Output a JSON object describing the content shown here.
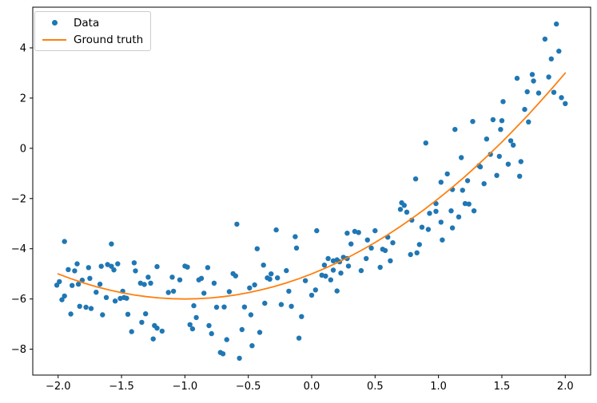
{
  "figure": {
    "background": "#ffffff",
    "spine_color": "#000000"
  },
  "legend": {
    "items": [
      {
        "label": "Data",
        "marker": "dot",
        "color": "#1f77b4"
      },
      {
        "label": "Ground truth",
        "marker": "line",
        "color": "#ff7f0e"
      }
    ]
  },
  "chart_data": {
    "type": "scatter",
    "title": "",
    "xlabel": "",
    "ylabel": "",
    "grid": false,
    "legend_position": "upper left",
    "xlim": [
      -2.2,
      2.2
    ],
    "ylim": [
      -9.03,
      5.62
    ],
    "x_ticks": {
      "values": [
        -2.0,
        -1.5,
        -1.0,
        -0.5,
        0.0,
        0.5,
        1.0,
        1.5,
        2.0
      ],
      "labels": [
        "−2.0",
        "−1.5",
        "−1.0",
        "−0.5",
        "0.0",
        "0.5",
        "1.0",
        "1.5",
        "2.0"
      ]
    },
    "y_ticks": {
      "values": [
        4,
        2,
        0,
        -2,
        -4,
        -6,
        -8
      ],
      "labels": [
        "4",
        "2",
        "0",
        "−2",
        "−4",
        "−6",
        "−8"
      ]
    },
    "series": [
      {
        "name": "Data",
        "type": "scatter",
        "color": "#1f77b4",
        "points": [
          [
            -2.01,
            -5.45
          ],
          [
            -1.99,
            -5.31
          ],
          [
            -1.97,
            -6.03
          ],
          [
            -1.95,
            -5.88
          ],
          [
            -1.95,
            -3.71
          ],
          [
            -1.92,
            -4.83
          ],
          [
            -1.9,
            -6.6
          ],
          [
            -1.89,
            -5.46
          ],
          [
            -1.87,
            -4.88
          ],
          [
            -1.85,
            -4.6
          ],
          [
            -1.84,
            -5.41
          ],
          [
            -1.83,
            -6.29
          ],
          [
            -1.81,
            -5.25
          ],
          [
            -1.78,
            -6.33
          ],
          [
            -1.76,
            -4.75
          ],
          [
            -1.75,
            -5.18
          ],
          [
            -1.74,
            -6.38
          ],
          [
            -1.7,
            -5.73
          ],
          [
            -1.67,
            -5.41
          ],
          [
            -1.66,
            -4.7
          ],
          [
            -1.65,
            -6.63
          ],
          [
            -1.62,
            -5.94
          ],
          [
            -1.61,
            -4.63
          ],
          [
            -1.58,
            -4.7
          ],
          [
            -1.58,
            -3.81
          ],
          [
            -1.56,
            -4.84
          ],
          [
            -1.55,
            -6.08
          ],
          [
            -1.53,
            -4.6
          ],
          [
            -1.51,
            -5.98
          ],
          [
            -1.49,
            -5.69
          ],
          [
            -1.48,
            -5.94
          ],
          [
            -1.46,
            -5.97
          ],
          [
            -1.45,
            -6.61
          ],
          [
            -1.42,
            -7.3
          ],
          [
            -1.4,
            -4.56
          ],
          [
            -1.39,
            -4.88
          ],
          [
            -1.35,
            -5.37
          ],
          [
            -1.34,
            -6.93
          ],
          [
            -1.32,
            -5.42
          ],
          [
            -1.31,
            -6.59
          ],
          [
            -1.29,
            -5.13
          ],
          [
            -1.27,
            -5.37
          ],
          [
            -1.25,
            -7.59
          ],
          [
            -1.24,
            -7.06
          ],
          [
            -1.22,
            -7.16
          ],
          [
            -1.22,
            -4.71
          ],
          [
            -1.18,
            -7.28
          ],
          [
            -1.13,
            -5.74
          ],
          [
            -1.1,
            -5.13
          ],
          [
            -1.09,
            -5.69
          ],
          [
            -1.04,
            -5.24
          ],
          [
            -1.0,
            -4.69
          ],
          [
            -0.98,
            -4.73
          ],
          [
            -0.96,
            -7.02
          ],
          [
            -0.94,
            -7.19
          ],
          [
            -0.93,
            -6.27
          ],
          [
            -0.91,
            -6.74
          ],
          [
            -0.89,
            -5.24
          ],
          [
            -0.87,
            -5.18
          ],
          [
            -0.85,
            -5.77
          ],
          [
            -0.82,
            -4.75
          ],
          [
            -0.81,
            -7.06
          ],
          [
            -0.79,
            -7.38
          ],
          [
            -0.77,
            -5.37
          ],
          [
            -0.75,
            -6.33
          ],
          [
            -0.72,
            -8.13
          ],
          [
            -0.7,
            -8.18
          ],
          [
            -0.69,
            -6.32
          ],
          [
            -0.67,
            -7.62
          ],
          [
            -0.65,
            -5.71
          ],
          [
            -0.62,
            -4.99
          ],
          [
            -0.6,
            -5.08
          ],
          [
            -0.59,
            -3.02
          ],
          [
            -0.57,
            -8.36
          ],
          [
            -0.55,
            -7.22
          ],
          [
            -0.53,
            -6.32
          ],
          [
            -0.49,
            -5.56
          ],
          [
            -0.48,
            -6.63
          ],
          [
            -0.47,
            -7.86
          ],
          [
            -0.45,
            -5.44
          ],
          [
            -0.43,
            -4.0
          ],
          [
            -0.41,
            -7.33
          ],
          [
            -0.38,
            -4.65
          ],
          [
            -0.37,
            -6.17
          ],
          [
            -0.35,
            -5.16
          ],
          [
            -0.33,
            -5.21
          ],
          [
            -0.32,
            -5.0
          ],
          [
            -0.28,
            -3.25
          ],
          [
            -0.27,
            -5.16
          ],
          [
            -0.24,
            -6.22
          ],
          [
            -0.2,
            -4.87
          ],
          [
            -0.18,
            -5.69
          ],
          [
            -0.16,
            -6.29
          ],
          [
            -0.13,
            -3.52
          ],
          [
            -0.12,
            -3.97
          ],
          [
            -0.1,
            -7.56
          ],
          [
            -0.08,
            -6.7
          ],
          [
            -0.05,
            -5.27
          ],
          [
            0.0,
            -5.85
          ],
          [
            0.03,
            -5.64
          ],
          [
            0.04,
            -3.28
          ],
          [
            0.08,
            -5.05
          ],
          [
            0.1,
            -4.65
          ],
          [
            0.11,
            -5.09
          ],
          [
            0.13,
            -4.39
          ],
          [
            0.15,
            -5.24
          ],
          [
            0.17,
            -4.48
          ],
          [
            0.17,
            -4.85
          ],
          [
            0.2,
            -4.44
          ],
          [
            0.2,
            -5.68
          ],
          [
            0.22,
            -4.52
          ],
          [
            0.23,
            -4.97
          ],
          [
            0.25,
            -4.34
          ],
          [
            0.28,
            -3.38
          ],
          [
            0.28,
            -4.39
          ],
          [
            0.29,
            -4.69
          ],
          [
            0.31,
            -3.81
          ],
          [
            0.34,
            -3.31
          ],
          [
            0.37,
            -3.35
          ],
          [
            0.39,
            -4.87
          ],
          [
            0.43,
            -4.39
          ],
          [
            0.44,
            -3.65
          ],
          [
            0.47,
            -3.97
          ],
          [
            0.5,
            -3.28
          ],
          [
            0.54,
            -4.74
          ],
          [
            0.56,
            -4.02
          ],
          [
            0.58,
            -4.07
          ],
          [
            0.6,
            -3.54
          ],
          [
            0.62,
            -4.48
          ],
          [
            0.64,
            -3.76
          ],
          [
            0.7,
            -2.43
          ],
          [
            0.71,
            -2.17
          ],
          [
            0.73,
            -2.27
          ],
          [
            0.75,
            -2.54
          ],
          [
            0.78,
            -4.23
          ],
          [
            0.79,
            -2.86
          ],
          [
            0.82,
            -1.22
          ],
          [
            0.83,
            -4.16
          ],
          [
            0.85,
            -3.83
          ],
          [
            0.87,
            -3.14
          ],
          [
            0.9,
            0.21
          ],
          [
            0.92,
            -3.23
          ],
          [
            0.93,
            -2.59
          ],
          [
            0.98,
            -2.2
          ],
          [
            0.98,
            -2.51
          ],
          [
            1.02,
            -2.94
          ],
          [
            1.02,
            -1.35
          ],
          [
            1.03,
            -3.65
          ],
          [
            1.07,
            -1.02
          ],
          [
            1.1,
            -2.49
          ],
          [
            1.11,
            -3.17
          ],
          [
            1.11,
            -1.64
          ],
          [
            1.13,
            0.75
          ],
          [
            1.16,
            -2.73
          ],
          [
            1.18,
            -0.37
          ],
          [
            1.19,
            -1.67
          ],
          [
            1.21,
            -2.2
          ],
          [
            1.23,
            -1.29
          ],
          [
            1.24,
            -2.22
          ],
          [
            1.27,
            1.07
          ],
          [
            1.28,
            -2.49
          ],
          [
            1.32,
            -0.69
          ],
          [
            1.33,
            -0.74
          ],
          [
            1.36,
            -1.41
          ],
          [
            1.38,
            0.37
          ],
          [
            1.41,
            -0.24
          ],
          [
            1.43,
            1.14
          ],
          [
            1.46,
            -1.08
          ],
          [
            1.48,
            -0.32
          ],
          [
            1.49,
            0.75
          ],
          [
            1.5,
            1.1
          ],
          [
            1.51,
            1.86
          ],
          [
            1.55,
            -0.63
          ],
          [
            1.57,
            0.3
          ],
          [
            1.59,
            0.13
          ],
          [
            1.62,
            2.79
          ],
          [
            1.64,
            -1.11
          ],
          [
            1.65,
            -0.53
          ],
          [
            1.68,
            1.55
          ],
          [
            1.7,
            2.25
          ],
          [
            1.71,
            1.05
          ],
          [
            1.74,
            2.94
          ],
          [
            1.75,
            2.68
          ],
          [
            1.79,
            2.2
          ],
          [
            1.84,
            4.35
          ],
          [
            1.87,
            2.84
          ],
          [
            1.89,
            3.56
          ],
          [
            1.91,
            2.23
          ],
          [
            1.93,
            4.95
          ],
          [
            1.95,
            3.87
          ],
          [
            1.97,
            2.02
          ],
          [
            2.0,
            1.78
          ]
        ]
      },
      {
        "name": "Ground truth",
        "type": "line",
        "color": "#ff7f0e",
        "equation": "y = (x + 1)^2 - 6",
        "points": [
          [
            -2.0,
            -5.0
          ],
          [
            -1.9,
            -5.19
          ],
          [
            -1.8,
            -5.36
          ],
          [
            -1.7,
            -5.51
          ],
          [
            -1.6,
            -5.64
          ],
          [
            -1.5,
            -5.75
          ],
          [
            -1.4,
            -5.84
          ],
          [
            -1.3,
            -5.91
          ],
          [
            -1.2,
            -5.96
          ],
          [
            -1.1,
            -5.99
          ],
          [
            -1.0,
            -6.0
          ],
          [
            -0.9,
            -5.99
          ],
          [
            -0.8,
            -5.96
          ],
          [
            -0.7,
            -5.91
          ],
          [
            -0.6,
            -5.84
          ],
          [
            -0.5,
            -5.75
          ],
          [
            -0.4,
            -5.64
          ],
          [
            -0.3,
            -5.51
          ],
          [
            -0.2,
            -5.36
          ],
          [
            -0.1,
            -5.19
          ],
          [
            0.0,
            -5.0
          ],
          [
            0.1,
            -4.79
          ],
          [
            0.2,
            -4.56
          ],
          [
            0.3,
            -4.31
          ],
          [
            0.4,
            -4.04
          ],
          [
            0.5,
            -3.75
          ],
          [
            0.6,
            -3.44
          ],
          [
            0.7,
            -3.11
          ],
          [
            0.8,
            -2.76
          ],
          [
            0.9,
            -2.39
          ],
          [
            1.0,
            -2.0
          ],
          [
            1.1,
            -1.59
          ],
          [
            1.2,
            -1.16
          ],
          [
            1.3,
            -0.71
          ],
          [
            1.4,
            -0.24
          ],
          [
            1.5,
            0.25
          ],
          [
            1.6,
            0.76
          ],
          [
            1.7,
            1.29
          ],
          [
            1.8,
            1.84
          ],
          [
            1.9,
            2.41
          ],
          [
            2.0,
            3.0
          ]
        ]
      }
    ]
  }
}
